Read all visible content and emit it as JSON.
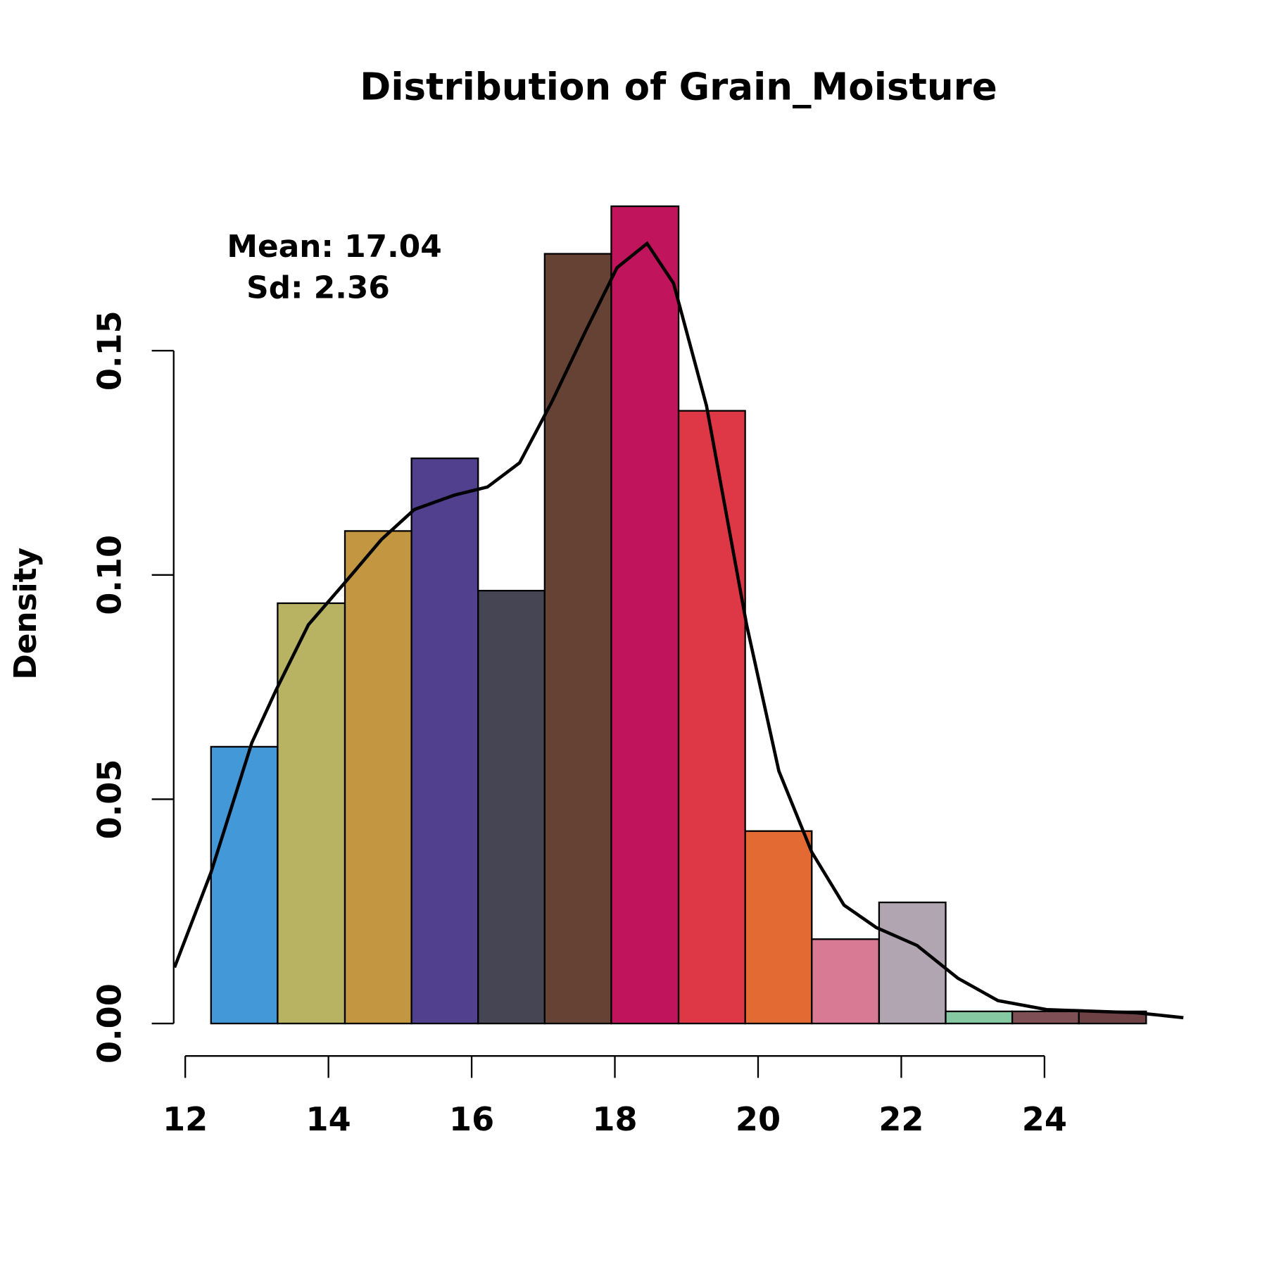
{
  "chart_data": {
    "type": "histogram",
    "title": "Distribution of Grain_Moisture",
    "y_label": "Density",
    "annotations": [
      "Mean: 17.04",
      "Sd: 2.36"
    ],
    "bins": [
      12.36,
      13.29,
      14.23,
      15.16,
      16.09,
      17.02,
      17.95,
      18.89,
      19.82,
      20.75,
      21.69,
      22.62,
      23.55,
      24.48,
      25.42
    ],
    "values": [
      0.0617,
      0.0937,
      0.1098,
      0.126,
      0.0965,
      0.1716,
      0.1822,
      0.1366,
      0.0429,
      0.0188,
      0.027,
      0.0027,
      0.0027,
      0.0027
    ],
    "colors": [
      "#4398D8",
      "#B8B263",
      "#C39641",
      "#51408E",
      "#464553",
      "#664235",
      "#C0145C",
      "#DE3745",
      "#E36A32",
      "#D97A94",
      "#B2A5B2",
      "#86C8A2",
      "#7E5055",
      "#6E4145"
    ],
    "density": {
      "color": "#000000",
      "x": [
        11.85,
        12.36,
        12.93,
        13.27,
        13.72,
        14.23,
        14.74,
        15.2,
        15.76,
        16.22,
        16.67,
        17.12,
        17.58,
        18.03,
        18.45,
        18.82,
        19.28,
        19.84,
        20.29,
        20.75,
        21.2,
        21.65,
        22.22,
        22.79,
        23.35,
        24.03,
        25.28,
        25.94
      ],
      "values": [
        0.0125,
        0.0337,
        0.0626,
        0.0744,
        0.0889,
        0.0983,
        0.1079,
        0.1146,
        0.1178,
        0.1196,
        0.125,
        0.1386,
        0.154,
        0.1685,
        0.1739,
        0.165,
        0.1377,
        0.0889,
        0.0563,
        0.0382,
        0.0264,
        0.0214,
        0.0174,
        0.0101,
        0.0051,
        0.0031,
        0.0024,
        0.0013
      ]
    },
    "xlim": [
      11.85,
      25.94
    ],
    "ylim": [
      0,
      0.19
    ],
    "xticks": [
      12,
      14,
      16,
      18,
      20,
      22,
      24
    ],
    "yticks": [
      {
        "value": 0,
        "label": "0.00"
      },
      {
        "value": 0.05,
        "label": "0.05"
      },
      {
        "value": 0.1,
        "label": "0.10"
      },
      {
        "value": 0.15,
        "label": "0.15"
      }
    ]
  }
}
